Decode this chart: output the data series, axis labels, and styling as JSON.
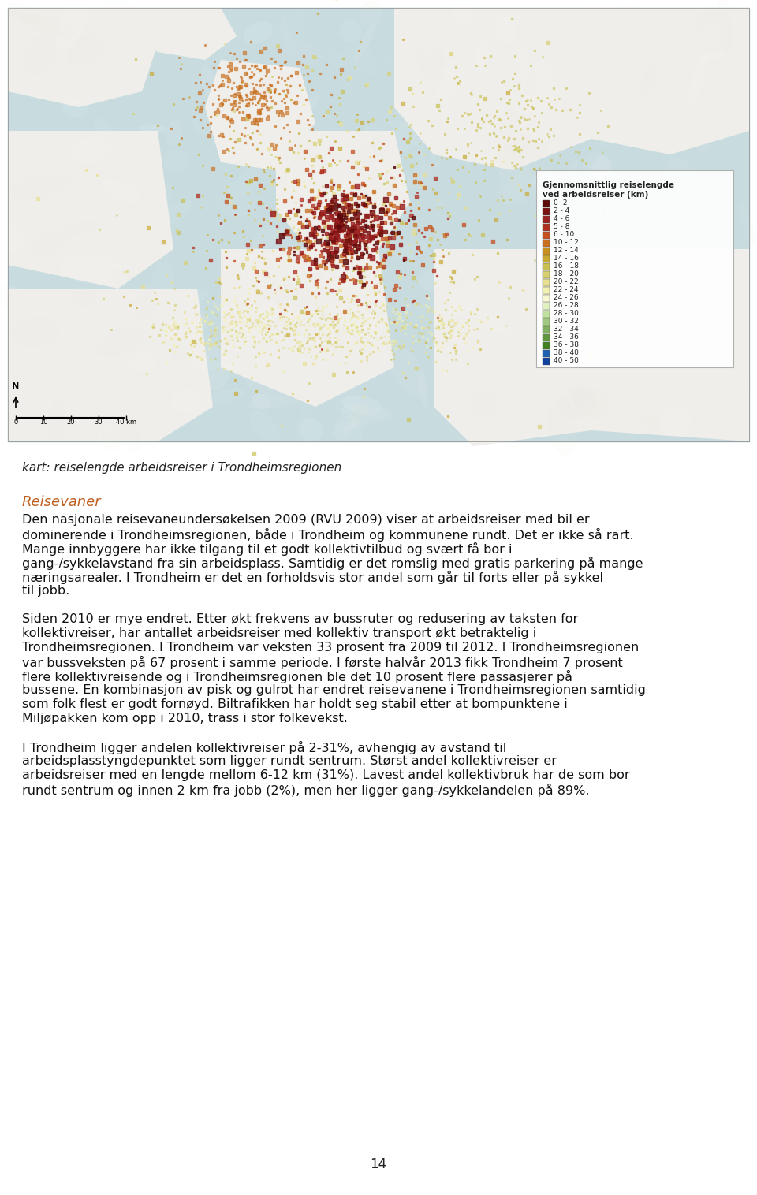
{
  "page_bg": "#ffffff",
  "map_caption": "kart: reiselengde arbeidsreiser i Trondheimsregionen",
  "section_title": "Reisevaner",
  "paragraphs": [
    "Den nasjonale reisevaneundersøkelsen 2009 (RVU 2009) viser at arbeidsreiser med bil er dominerende i Trondheimsregionen, både i Trondheim og kommunene rundt. Det er ikke så rart. Mange innbyggere har ikke tilgang til et godt kollektivtilbud og svært få bor i gang-/sykkelavstand fra sin arbeidsplass. Samtidig er det romslig med gratis parkering på mange næringsarealer. I Trondheim er det en forholdsvis stor andel som går til forts eller på sykkel til jobb.",
    "Siden 2010 er mye endret. Etter økt frekvens av bussruter og redusering av taksten for kollektivreiser, har antallet arbeidsreiser med kollektiv transport økt betraktelig i Trondheimsregionen. I Trondheim var veksten 33 prosent fra 2009 til 2012. I Trondheimsregionen var bussveksten på 67 prosent i samme periode. I første halvår 2013 fikk Trondheim 7 prosent flere kollektivreisende og i Trondheimsregionen ble det 10 prosent flere passasjerer på bussene. En kombinasjon av pisk og gulrot har endret reisevanene i Trondheimsregionen samtidig som folk flest er godt fornøyd. Biltrafikken har holdt seg stabil etter at bompunktene i Miljøpakken kom opp i 2010, trass i stor folkevekst.",
    "I Trondheim ligger andelen kollektivreiser på 2-31%, avhengig av avstand til arbeidsplasstyngdepunktet som ligger rundt sentrum. Størst andel kollektivreiser er arbeidsreiser med en lengde mellom 6-12 km (31%). Lavest andel kollektivbruk har de som bor rundt sentrum og innen 2 km fra jobb (2%), men her ligger gang-/sykkelandelen på 89%."
  ],
  "page_number": "14",
  "legend_title_line1": "Gjennomsnittlig reiselengde",
  "legend_title_line2": "ved arbeidsreiser (km)",
  "legend_items": [
    {
      "label": "0 -2",
      "color": "#5c0a0a"
    },
    {
      "label": "2 - 4",
      "color": "#7b1010"
    },
    {
      "label": "4 - 6",
      "color": "#9b2020"
    },
    {
      "label": "5 - 8",
      "color": "#b03020"
    },
    {
      "label": "6 - 10",
      "color": "#c45020"
    },
    {
      "label": "10 - 12",
      "color": "#c87020"
    },
    {
      "label": "12 - 14",
      "color": "#c89020"
    },
    {
      "label": "14 - 16",
      "color": "#c8a830"
    },
    {
      "label": "16 - 18",
      "color": "#c8c050"
    },
    {
      "label": "18 - 20",
      "color": "#d8d070"
    },
    {
      "label": "20 - 22",
      "color": "#e8e090"
    },
    {
      "label": "22 - 24",
      "color": "#f0f0b0"
    },
    {
      "label": "24 - 26",
      "color": "#f8f8d0"
    },
    {
      "label": "26 - 28",
      "color": "#e0f0c0"
    },
    {
      "label": "28 - 30",
      "color": "#c0e0a0"
    },
    {
      "label": "30 - 32",
      "color": "#a0c880"
    },
    {
      "label": "32 - 34",
      "color": "#80b060"
    },
    {
      "label": "34 - 36",
      "color": "#609840"
    },
    {
      "label": "36 - 38",
      "color": "#408020"
    },
    {
      "label": "38 - 40",
      "color": "#2060b0"
    },
    {
      "label": "40 - 50",
      "color": "#1040a0"
    }
  ]
}
